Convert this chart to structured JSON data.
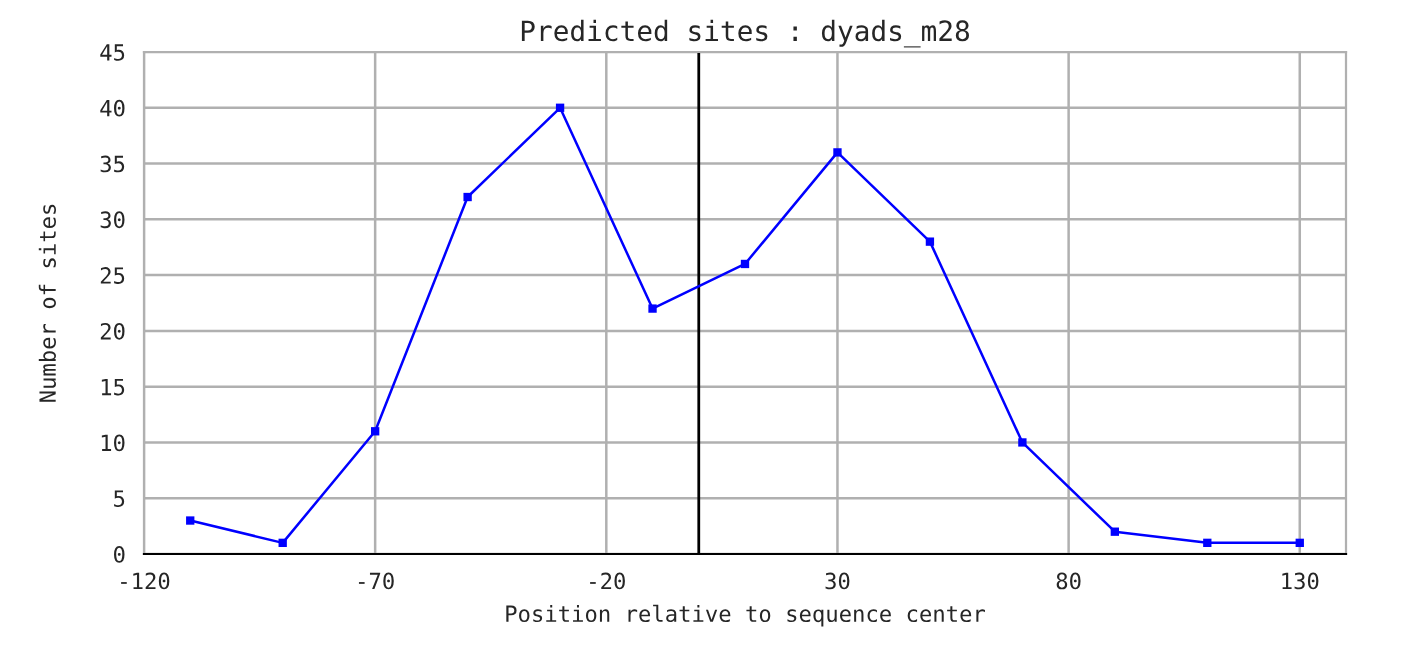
{
  "chart_data": {
    "type": "line",
    "title": "Predicted sites : dyads_m28",
    "xlabel": "Position relative to sequence center",
    "ylabel": "Number of sites",
    "x": [
      -110,
      -90,
      -70,
      -50,
      -30,
      -10,
      10,
      30,
      50,
      70,
      90,
      110,
      130
    ],
    "series": [
      {
        "color": "#0000ff",
        "values": [
          3,
          1,
          11,
          32,
          40,
          22,
          26,
          36,
          28,
          10,
          2,
          1,
          1
        ]
      }
    ],
    "xlim": [
      -120,
      140
    ],
    "xticks": [
      -120,
      -70,
      -20,
      30,
      80,
      130
    ],
    "ylim": [
      0,
      45
    ],
    "yticks": [
      0,
      5,
      10,
      15,
      20,
      25,
      30,
      35,
      40,
      45
    ],
    "ref_lines": [
      {
        "axis": "x",
        "value": 0,
        "color": "#000000"
      }
    ],
    "grid": true,
    "marker": "square",
    "line_style": "solid"
  }
}
